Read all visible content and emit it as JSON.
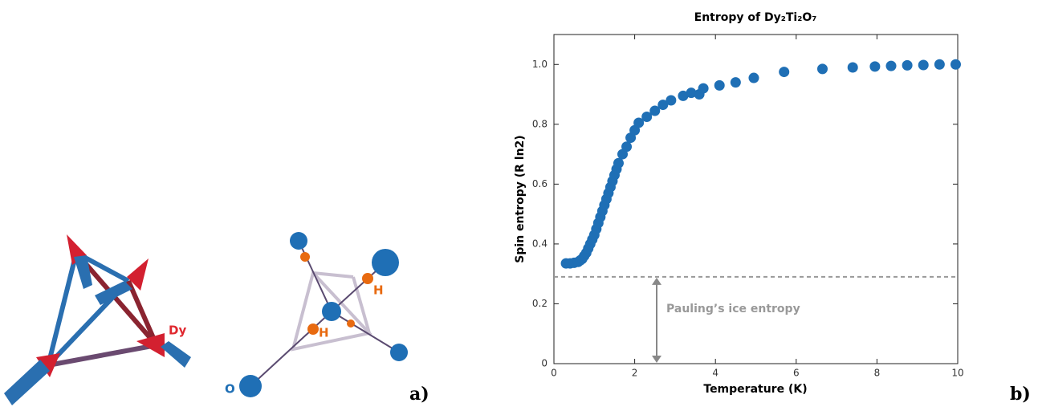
{
  "diagram": {
    "labels": [
      "Dy",
      "O",
      "H",
      "H"
    ],
    "panel_label": "a)"
  },
  "chart_data": {
    "type": "scatter",
    "title": "Entropy of Dy₂Ti₂O₇",
    "x_label": "Temperature (K)",
    "y_label": "Spin entropy (R ln2)",
    "color": "#1f6fb5",
    "panel_label": "b)",
    "x": [
      0.3,
      0.4,
      0.5,
      0.6,
      0.65,
      0.7,
      0.75,
      0.8,
      0.85,
      0.9,
      0.95,
      1.0,
      1.05,
      1.1,
      1.15,
      1.2,
      1.25,
      1.3,
      1.35,
      1.4,
      1.45,
      1.5,
      1.55,
      1.6,
      1.7,
      1.8,
      1.9,
      2.0,
      2.1,
      2.3,
      2.5,
      2.7,
      2.9,
      3.2,
      3.4,
      3.6,
      3.7,
      4.1,
      4.5,
      4.95,
      5.7,
      6.65,
      7.4,
      7.95,
      8.35,
      8.75,
      9.15,
      9.55,
      9.95
    ],
    "values": [
      0.335,
      0.335,
      0.337,
      0.34,
      0.345,
      0.35,
      0.36,
      0.37,
      0.385,
      0.4,
      0.415,
      0.43,
      0.45,
      0.47,
      0.49,
      0.51,
      0.53,
      0.55,
      0.57,
      0.59,
      0.61,
      0.63,
      0.65,
      0.67,
      0.7,
      0.725,
      0.755,
      0.78,
      0.805,
      0.825,
      0.845,
      0.865,
      0.88,
      0.895,
      0.905,
      0.9,
      0.92,
      0.93,
      0.94,
      0.955,
      0.975,
      0.985,
      0.99,
      0.993,
      0.995,
      0.997,
      0.998,
      1.0,
      1.0
    ],
    "xlim": [
      0,
      10
    ],
    "ylim": [
      0,
      1.1
    ],
    "xticks": [
      0,
      2,
      4,
      6,
      8,
      10
    ],
    "yticks": [
      0,
      0.2,
      0.4,
      0.6,
      0.8,
      {
        "value": 1,
        "label": "1.0"
      }
    ],
    "grid": false,
    "reference_line": 0.29,
    "annotation": "Pauling’s ice entropy"
  }
}
